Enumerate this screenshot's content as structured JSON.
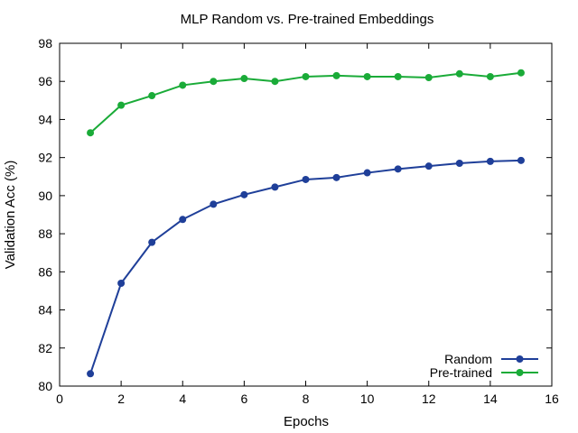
{
  "chart_data": {
    "type": "line",
    "title": "MLP Random vs. Pre-trained Embeddings",
    "xlabel": "Epochs",
    "ylabel": "Validation Acc (%)",
    "xlim": [
      0,
      16
    ],
    "ylim": [
      80,
      98
    ],
    "xticks": [
      0,
      2,
      4,
      6,
      8,
      10,
      12,
      14,
      16
    ],
    "yticks": [
      80,
      82,
      84,
      86,
      88,
      90,
      92,
      94,
      96,
      98
    ],
    "grid": false,
    "legend": "bottom-right",
    "x": [
      1,
      2,
      3,
      4,
      5,
      6,
      7,
      8,
      9,
      10,
      11,
      12,
      13,
      14,
      15
    ],
    "series": [
      {
        "name": "Random",
        "color": "#1f3f99",
        "values": [
          80.65,
          85.4,
          87.55,
          88.75,
          89.55,
          90.05,
          90.45,
          90.85,
          90.95,
          91.2,
          91.4,
          91.55,
          91.7,
          91.8,
          91.85
        ]
      },
      {
        "name": "Pre-trained",
        "color": "#1aab38",
        "values": [
          93.3,
          94.75,
          95.25,
          95.8,
          96.0,
          96.15,
          96.0,
          96.25,
          96.3,
          96.25,
          96.25,
          96.2,
          96.4,
          96.25,
          96.45
        ]
      }
    ]
  }
}
